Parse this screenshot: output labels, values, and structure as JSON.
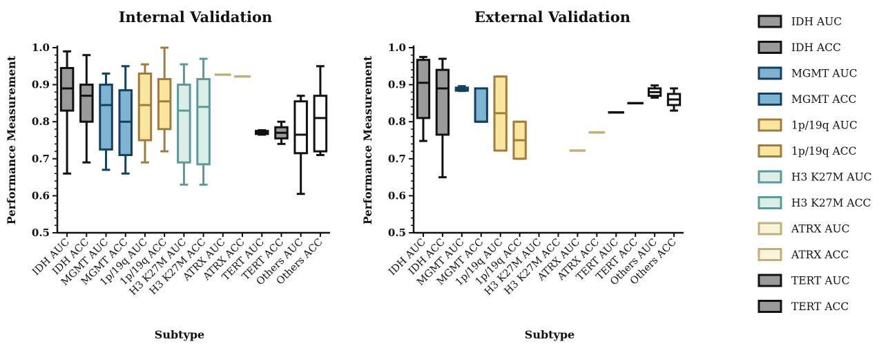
{
  "legend": [
    {
      "label": "IDH AUC",
      "fill": "#9a9a9a",
      "stroke": "#111111"
    },
    {
      "label": "IDH ACC",
      "fill": "#9a9a9a",
      "stroke": "#111111"
    },
    {
      "label": "MGMT AUC",
      "fill": "#7fb3d2",
      "stroke": "#12405e"
    },
    {
      "label": "MGMT ACC",
      "fill": "#7fb3d2",
      "stroke": "#12405e"
    },
    {
      "label": "1p/19q AUC",
      "fill": "#fbe6a0",
      "stroke": "#a07c3c"
    },
    {
      "label": "1p/19q ACC",
      "fill": "#fbe6a0",
      "stroke": "#a07c3c"
    },
    {
      "label": "H3 K27M AUC",
      "fill": "#ddeee6",
      "stroke": "#5a9a98"
    },
    {
      "label": "H3 K27M ACC",
      "fill": "#ddeee6",
      "stroke": "#5a9a98"
    },
    {
      "label": "ATRX AUC",
      "fill": "#fbf4dc",
      "stroke": "#bfb07a"
    },
    {
      "label": "ATRX ACC",
      "fill": "#fbf4dc",
      "stroke": "#bfb07a"
    },
    {
      "label": "TERT AUC",
      "fill": "#9a9a9a",
      "stroke": "#111111"
    },
    {
      "label": "TERT ACC",
      "fill": "#9a9a9a",
      "stroke": "#111111"
    }
  ],
  "chart_data": [
    {
      "type": "box",
      "title": "Internal Validation",
      "xlabel": "Subtype",
      "ylabel": "Performance Measurement",
      "ylim": [
        0.5,
        1.0
      ],
      "yticks": [
        "0.5",
        "0.6",
        "0.7",
        "0.8",
        "0.9",
        "1.0"
      ],
      "categories": [
        "IDH AUC",
        "IDH ACC",
        "MGMT AUC",
        "MGMT ACC",
        "1p/19q AUC",
        "1p/19q ACC",
        "H3 K27M AUC",
        "H3 K27M ACC",
        "ATRX AUC",
        "ATRX ACC",
        "TERT AUC",
        "TERT ACC",
        "Others AUC",
        "Others ACC"
      ],
      "boxes": [
        {
          "min": 0.66,
          "q1": 0.83,
          "median": 0.89,
          "q3": 0.945,
          "max": 0.99,
          "fill": "#9a9a9a",
          "stroke": "#111111"
        },
        {
          "min": 0.69,
          "q1": 0.8,
          "median": 0.87,
          "q3": 0.9,
          "max": 0.98,
          "fill": "#9a9a9a",
          "stroke": "#111111"
        },
        {
          "min": 0.67,
          "q1": 0.725,
          "median": 0.845,
          "q3": 0.9,
          "max": 0.93,
          "fill": "#7fb3d2",
          "stroke": "#12405e"
        },
        {
          "min": 0.66,
          "q1": 0.71,
          "median": 0.8,
          "q3": 0.885,
          "max": 0.95,
          "fill": "#7fb3d2",
          "stroke": "#12405e"
        },
        {
          "min": 0.69,
          "q1": 0.75,
          "median": 0.845,
          "q3": 0.93,
          "max": 0.955,
          "fill": "#fbe6a0",
          "stroke": "#a07c3c"
        },
        {
          "min": 0.72,
          "q1": 0.78,
          "median": 0.855,
          "q3": 0.915,
          "max": 1.0,
          "fill": "#fbe6a0",
          "stroke": "#a07c3c"
        },
        {
          "min": 0.63,
          "q1": 0.69,
          "median": 0.83,
          "q3": 0.9,
          "max": 0.955,
          "fill": "#ddeee6",
          "stroke": "#5a9a98"
        },
        {
          "min": 0.63,
          "q1": 0.685,
          "median": 0.84,
          "q3": 0.915,
          "max": 0.97,
          "fill": "#ddeee6",
          "stroke": "#5a9a98"
        },
        {
          "min": 0.927,
          "q1": 0.927,
          "median": 0.927,
          "q3": 0.927,
          "max": 0.927,
          "fill": "#fbf4dc",
          "stroke": "#bfb07a"
        },
        {
          "min": 0.922,
          "q1": 0.922,
          "median": 0.922,
          "q3": 0.922,
          "max": 0.922,
          "fill": "#fbf4dc",
          "stroke": "#bfb07a"
        },
        {
          "min": 0.765,
          "q1": 0.767,
          "median": 0.771,
          "q3": 0.775,
          "max": 0.777,
          "fill": "#9a9a9a",
          "stroke": "#111111"
        },
        {
          "min": 0.74,
          "q1": 0.755,
          "median": 0.77,
          "q3": 0.785,
          "max": 0.8,
          "fill": "#9a9a9a",
          "stroke": "#111111"
        },
        {
          "min": 0.605,
          "q1": 0.715,
          "median": 0.765,
          "q3": 0.855,
          "max": 0.87,
          "fill": "#ffffff",
          "stroke": "#111111"
        },
        {
          "min": 0.71,
          "q1": 0.72,
          "median": 0.81,
          "q3": 0.87,
          "max": 0.95,
          "fill": "#ffffff",
          "stroke": "#111111"
        }
      ]
    },
    {
      "type": "box",
      "title": "External Validation",
      "xlabel": "Subtype",
      "ylabel": "Performance Measurement",
      "ylim": [
        0.5,
        1.0
      ],
      "yticks": [
        "0.5",
        "0.6",
        "0.7",
        "0.8",
        "0.9",
        "1.0"
      ],
      "categories": [
        "IDH AUC",
        "IDH ACC",
        "MGMT AUC",
        "MGMT ACC",
        "1p/19q AUC",
        "1p/19q ACC",
        "H3 K27M AUC",
        "H3 K27M ACC",
        "ATRX AUC",
        "ATRX ACC",
        "TERT AUC",
        "TERT ACC",
        "Others AUC",
        "Others ACC"
      ],
      "boxes": [
        {
          "min": 0.748,
          "q1": 0.81,
          "median": 0.905,
          "q3": 0.967,
          "max": 0.975,
          "fill": "#9a9a9a",
          "stroke": "#111111"
        },
        {
          "min": 0.65,
          "q1": 0.765,
          "median": 0.89,
          "q3": 0.94,
          "max": 0.97,
          "fill": "#9a9a9a",
          "stroke": "#111111"
        },
        {
          "min": 0.883,
          "q1": 0.884,
          "median": 0.888,
          "q3": 0.892,
          "max": 0.896,
          "fill": "#7fb3d2",
          "stroke": "#12405e"
        },
        {
          "min": 0.8,
          "q1": 0.8,
          "median": 0.8,
          "q3": 0.89,
          "max": 0.89,
          "fill": "#7fb3d2",
          "stroke": "#12405e"
        },
        {
          "min": 0.722,
          "q1": 0.722,
          "median": 0.823,
          "q3": 0.922,
          "max": 0.922,
          "fill": "#fbe6a0",
          "stroke": "#a07c3c"
        },
        {
          "min": 0.7,
          "q1": 0.7,
          "median": 0.75,
          "q3": 0.8,
          "max": 0.8,
          "fill": "#fbe6a0",
          "stroke": "#a07c3c"
        },
        null,
        null,
        {
          "min": 0.72,
          "q1": 0.721,
          "median": 0.722,
          "q3": 0.723,
          "max": 0.724,
          "fill": "#fbf4dc",
          "stroke": "#bfb07a"
        },
        {
          "min": 0.771,
          "q1": 0.771,
          "median": 0.771,
          "q3": 0.771,
          "max": 0.771,
          "fill": "#fbf4dc",
          "stroke": "#bfb07a"
        },
        {
          "min": 0.825,
          "q1": 0.825,
          "median": 0.825,
          "q3": 0.825,
          "max": 0.825,
          "fill": "#9a9a9a",
          "stroke": "#111111"
        },
        {
          "min": 0.85,
          "q1": 0.85,
          "median": 0.85,
          "q3": 0.85,
          "max": 0.85,
          "fill": "#9a9a9a",
          "stroke": "#111111"
        },
        {
          "min": 0.865,
          "q1": 0.87,
          "median": 0.88,
          "q3": 0.89,
          "max": 0.898,
          "fill": "#ffffff",
          "stroke": "#111111"
        },
        {
          "min": 0.83,
          "q1": 0.845,
          "median": 0.86,
          "q3": 0.875,
          "max": 0.89,
          "fill": "#ffffff",
          "stroke": "#111111"
        }
      ]
    }
  ]
}
